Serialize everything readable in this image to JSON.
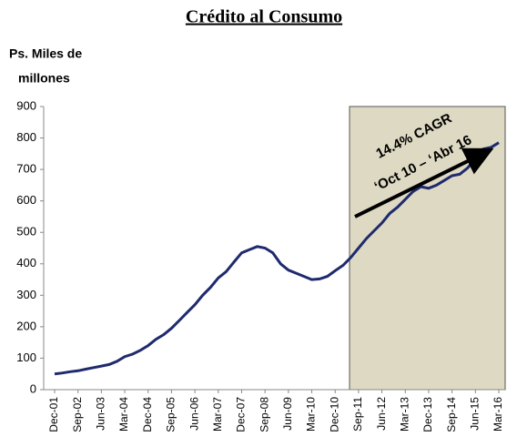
{
  "chart_data": {
    "type": "line",
    "title": "Crédito al Consumo",
    "y_label": [
      "Ps. Miles de",
      "millones"
    ],
    "annotations": [
      "14.4% CAGR",
      "‘Oct 10 – ‘Abr 16"
    ],
    "categories": [
      "Dec-01",
      null,
      null,
      "Sep-02",
      null,
      null,
      "Jun-03",
      null,
      null,
      "Mar-04",
      null,
      null,
      "Dec-04",
      null,
      null,
      "Sep-05",
      null,
      null,
      "Jun-06",
      null,
      null,
      "Mar-07",
      null,
      null,
      "Dec-07",
      null,
      null,
      "Sep-08",
      null,
      null,
      "Jun-09",
      null,
      null,
      "Mar-10",
      null,
      null,
      "Dec-10",
      null,
      null,
      "Sep-11",
      null,
      null,
      "Jun-12",
      null,
      null,
      "Mar-13",
      null,
      null,
      "Dec-13",
      null,
      null,
      "Sep-14",
      null,
      null,
      "Jun-15",
      null,
      null,
      "Mar-16"
    ],
    "series": [
      {
        "name": "Crédito al Consumo",
        "color": "#1f2a6e",
        "values": [
          50,
          53,
          57,
          60,
          65,
          70,
          75,
          80,
          90,
          105,
          113,
          125,
          140,
          160,
          175,
          195,
          220,
          245,
          270,
          300,
          325,
          355,
          375,
          405,
          435,
          445,
          455,
          450,
          435,
          400,
          380,
          370,
          360,
          350,
          352,
          360,
          378,
          395,
          420,
          450,
          480,
          505,
          530,
          560,
          580,
          605,
          630,
          645,
          640,
          650,
          665,
          680,
          685,
          705,
          735,
          765,
          770,
          785
        ]
      }
    ],
    "ylim": [
      0,
      900
    ],
    "yticks": [
      0,
      100,
      200,
      300,
      400,
      500,
      600,
      700,
      800,
      900
    ],
    "grid": false
  }
}
